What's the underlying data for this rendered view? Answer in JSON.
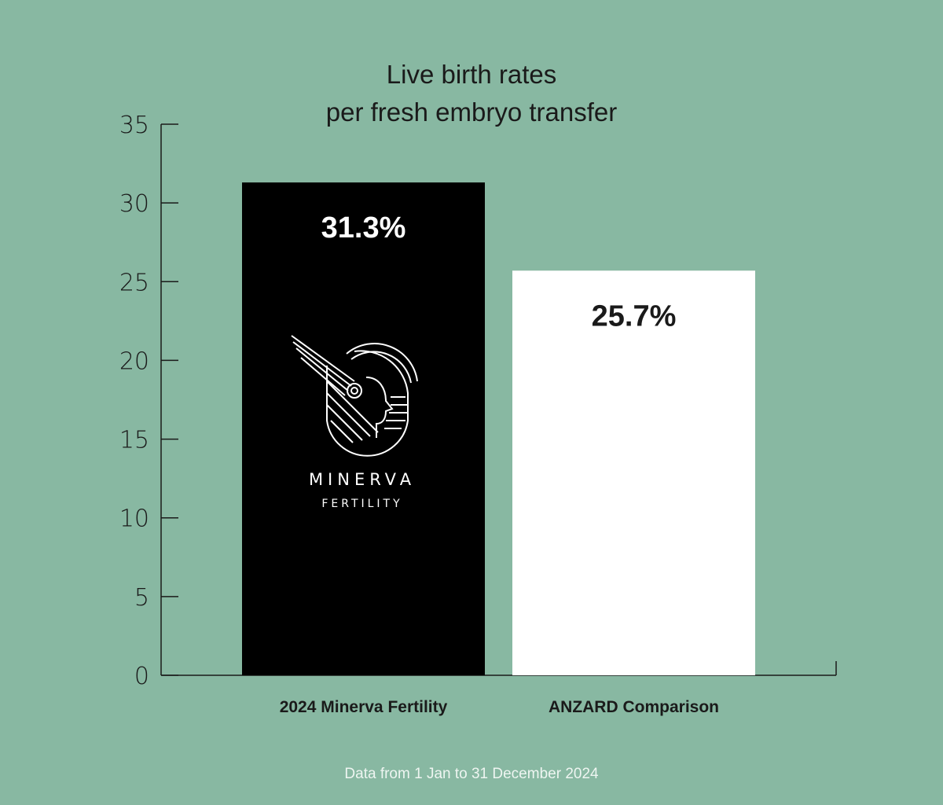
{
  "chart_data": {
    "type": "bar",
    "title": [
      "Live birth rates",
      "per fresh embryo transfer"
    ],
    "categories": [
      "2024 Minerva Fertility",
      "ANZARD Comparison"
    ],
    "values": [
      31.3,
      25.7
    ],
    "value_labels": [
      "31.3%",
      "25.7%"
    ],
    "bar_colors": [
      "#000000",
      "#ffffff"
    ],
    "value_label_colors": [
      "#ffffff",
      "#1a1a1a"
    ],
    "xlabel": "",
    "ylabel": "",
    "ylim": [
      0,
      35
    ],
    "yticks": [
      0,
      5,
      10,
      15,
      20,
      25,
      30,
      35
    ],
    "grid": false,
    "legend": "none"
  },
  "logo": {
    "icon": "minerva-helmet-icon",
    "name": "MINERVA",
    "subname": "FERTILITY"
  },
  "footnote": "Data from 1 Jan to 31 December 2024",
  "colors": {
    "background": "#88b8a2",
    "axis": "#1a1a1a",
    "text": "#1a1a1a"
  }
}
